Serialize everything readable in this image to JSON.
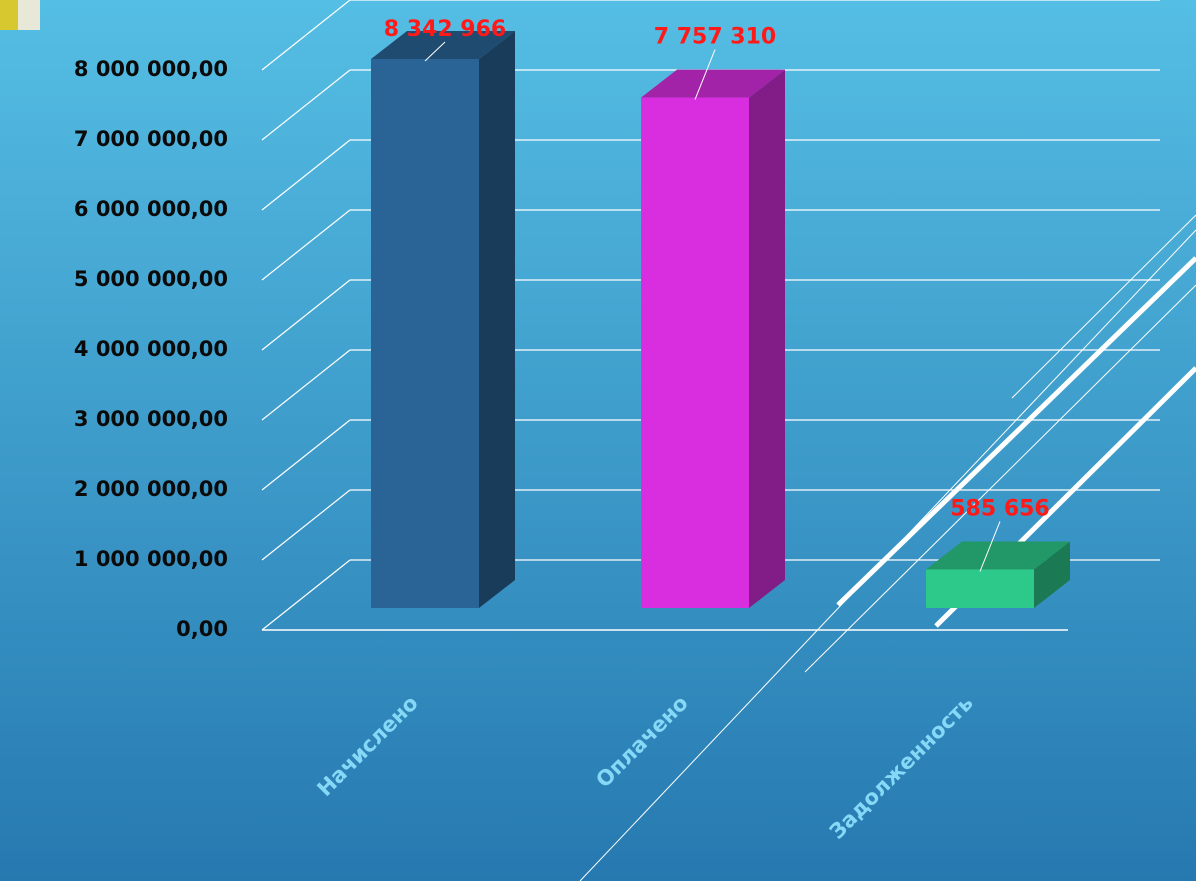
{
  "chart_data": {
    "type": "bar3d",
    "categories": [
      "Начислено",
      "Оплачено",
      "Задолженность"
    ],
    "values": [
      8342966,
      7757310,
      585656
    ],
    "value_labels": [
      "8 342 966",
      "7 757 310",
      "585 656"
    ],
    "series_colors": [
      "#2a6496",
      "#d92ee0",
      "#2dc98a"
    ],
    "ylim": [
      0,
      8000000
    ],
    "yticks": [
      {
        "value": 0,
        "label": "0,00"
      },
      {
        "value": 1000000,
        "label": "1 000 000,00"
      },
      {
        "value": 2000000,
        "label": "2 000 000,00"
      },
      {
        "value": 3000000,
        "label": "3 000 000,00"
      },
      {
        "value": 4000000,
        "label": "4 000 000,00"
      },
      {
        "value": 5000000,
        "label": "5 000 000,00"
      },
      {
        "value": 6000000,
        "label": "6 000 000,00"
      },
      {
        "value": 7000000,
        "label": "7 000 000,00"
      },
      {
        "value": 8000000,
        "label": "8 000 000,00"
      }
    ],
    "grid": true
  }
}
